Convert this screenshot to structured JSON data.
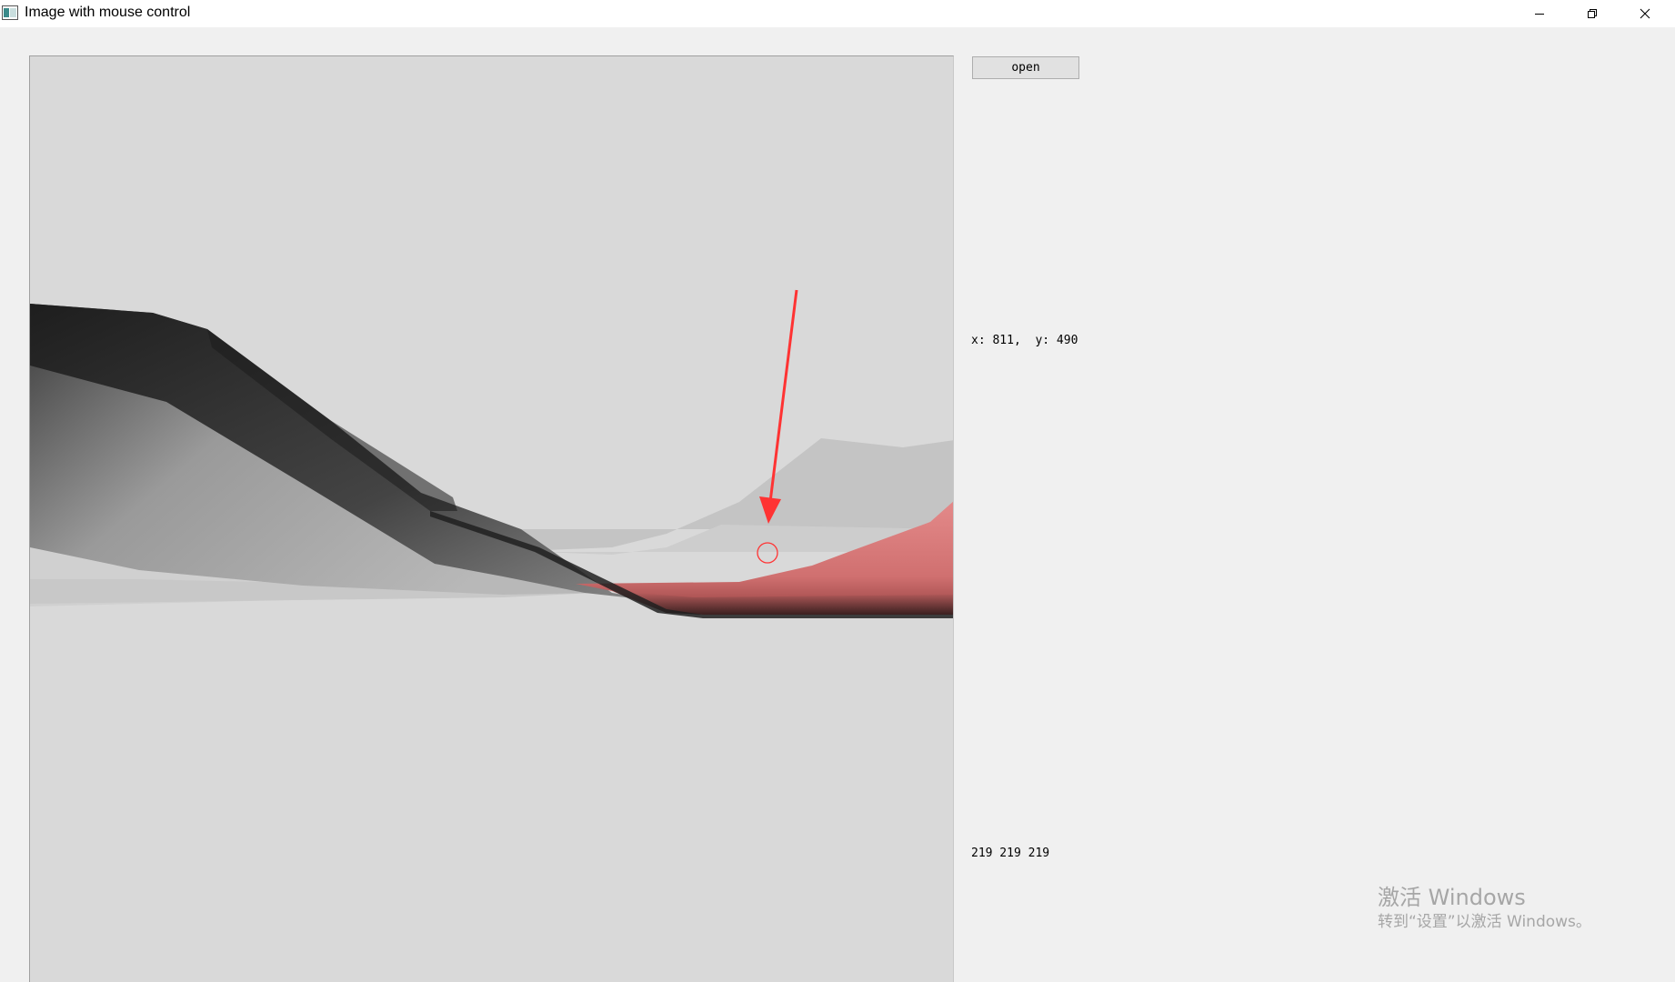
{
  "window": {
    "title": "Image with mouse control"
  },
  "controls": {
    "open_label": "open"
  },
  "readouts": {
    "coordinates": "x: 811,  y: 490",
    "pixel_rgb": "219 219 219"
  },
  "watermark": {
    "title": "激活 Windows",
    "subtitle": "转到“设置”以激活 Windows。"
  },
  "colors": {
    "viewport_bg": "#d9d9d9",
    "surface_red": "#d87a7a",
    "annotation_red": "#ff3333",
    "window_bg": "#f0f0f0"
  },
  "icons": {
    "app": "app-icon",
    "minimize": "minimize-icon",
    "maximize": "restore-icon",
    "close": "close-icon",
    "cursor_marker": "circle-marker-icon",
    "annotation": "arrow-icon"
  }
}
